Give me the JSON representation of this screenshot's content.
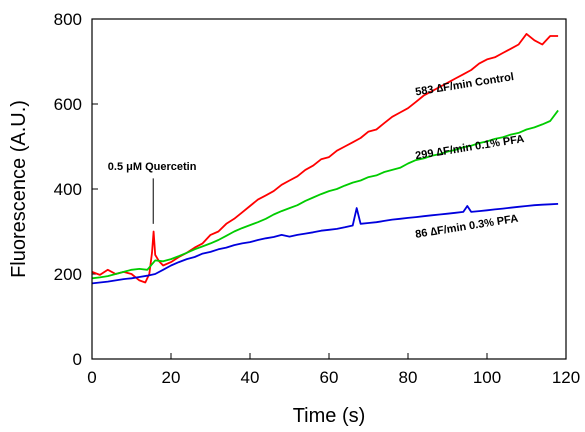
{
  "chart_data": {
    "type": "line",
    "title": "",
    "xlabel": "Time (s)",
    "ylabel": "Fluorescence (A.U.)",
    "xlim": [
      0,
      120
    ],
    "ylim": [
      0,
      800
    ],
    "xticks": [
      "0",
      "20",
      "40",
      "60",
      "80",
      "100",
      "120"
    ],
    "yticks": [
      "0",
      "200",
      "400",
      "600",
      "800"
    ],
    "xtick_values": [
      0,
      20,
      40,
      60,
      80,
      100,
      120
    ],
    "ytick_values": [
      0,
      200,
      400,
      600,
      800
    ],
    "grid": false,
    "series": [
      {
        "color": "#ff0000",
        "x": [
          0,
          2,
          4,
          6,
          8,
          10,
          12,
          13.5,
          14.5,
          15.2,
          15.6,
          16,
          17,
          18,
          20,
          22,
          24,
          26,
          28,
          30,
          32,
          34,
          36,
          38,
          40,
          42,
          44,
          46,
          48,
          50,
          52,
          54,
          56,
          58,
          60,
          62,
          64,
          66,
          68,
          70,
          72,
          74,
          76,
          78,
          80,
          82,
          84,
          86,
          88,
          90,
          92,
          94,
          96,
          98,
          100,
          102,
          104,
          106,
          108,
          110,
          112,
          114,
          116,
          118
        ],
        "y": [
          205,
          198,
          210,
          200,
          205,
          200,
          185,
          180,
          200,
          250,
          300,
          245,
          230,
          220,
          228,
          240,
          250,
          262,
          272,
          292,
          300,
          318,
          330,
          345,
          360,
          375,
          385,
          395,
          410,
          420,
          430,
          445,
          455,
          470,
          475,
          490,
          500,
          510,
          520,
          535,
          540,
          555,
          570,
          580,
          590,
          605,
          620,
          630,
          640,
          650,
          660,
          670,
          680,
          695,
          705,
          710,
          720,
          730,
          740,
          765,
          750,
          740,
          760,
          760
        ]
      },
      {
        "color": "#00cc00",
        "x": [
          0,
          2,
          4,
          6,
          8,
          10,
          12,
          14,
          16,
          18,
          20,
          22,
          24,
          26,
          28,
          30,
          32,
          34,
          36,
          38,
          40,
          42,
          44,
          46,
          48,
          50,
          52,
          54,
          56,
          58,
          60,
          62,
          64,
          66,
          68,
          70,
          72,
          74,
          76,
          78,
          80,
          82,
          84,
          86,
          88,
          90,
          92,
          94,
          96,
          98,
          100,
          102,
          104,
          106,
          108,
          110,
          112,
          114,
          116,
          118
        ],
        "y": [
          190,
          192,
          195,
          200,
          205,
          210,
          212,
          210,
          232,
          230,
          235,
          242,
          250,
          258,
          265,
          272,
          280,
          290,
          300,
          308,
          315,
          322,
          330,
          340,
          348,
          355,
          362,
          372,
          380,
          388,
          395,
          400,
          408,
          415,
          420,
          428,
          432,
          440,
          445,
          450,
          460,
          468,
          472,
          478,
          482,
          488,
          492,
          498,
          502,
          508,
          512,
          518,
          522,
          528,
          532,
          540,
          545,
          552,
          560,
          585
        ]
      },
      {
        "color": "#0000dd",
        "x": [
          0,
          2,
          4,
          6,
          8,
          10,
          12,
          14,
          16,
          18,
          20,
          22,
          24,
          26,
          28,
          30,
          32,
          34,
          36,
          38,
          40,
          42,
          44,
          46,
          48,
          50,
          52,
          54,
          56,
          58,
          60,
          62,
          64,
          66,
          67,
          68,
          70,
          72,
          74,
          76,
          78,
          80,
          82,
          84,
          86,
          88,
          90,
          92,
          94,
          95,
          96,
          98,
          100,
          102,
          104,
          106,
          108,
          110,
          112,
          114,
          116,
          118
        ],
        "y": [
          178,
          180,
          182,
          185,
          188,
          190,
          193,
          196,
          200,
          210,
          220,
          228,
          235,
          240,
          248,
          252,
          258,
          262,
          268,
          272,
          275,
          280,
          284,
          287,
          292,
          288,
          292,
          295,
          298,
          302,
          304,
          306,
          310,
          314,
          355,
          318,
          320,
          322,
          325,
          328,
          330,
          332,
          334,
          336,
          338,
          340,
          342,
          344,
          346,
          360,
          346,
          348,
          350,
          352,
          354,
          356,
          358,
          360,
          362,
          363,
          364,
          365
        ]
      }
    ],
    "annotations": [
      {
        "text": "583 ∆F/min Control",
        "x": 82,
        "y": 620,
        "angle": -9
      },
      {
        "text": "299 ∆F/min 0.1% PFA",
        "x": 82,
        "y": 470,
        "angle": -9
      },
      {
        "text": "86 ∆F/min  0.3% PFA",
        "x": 82,
        "y": 285,
        "angle": -9
      },
      {
        "text": "0.5 μM Quercetin",
        "x": 4,
        "y": 445,
        "angle": 0
      }
    ],
    "marker_line": {
      "x": 15.5,
      "y1": 425,
      "y2": 318
    }
  }
}
